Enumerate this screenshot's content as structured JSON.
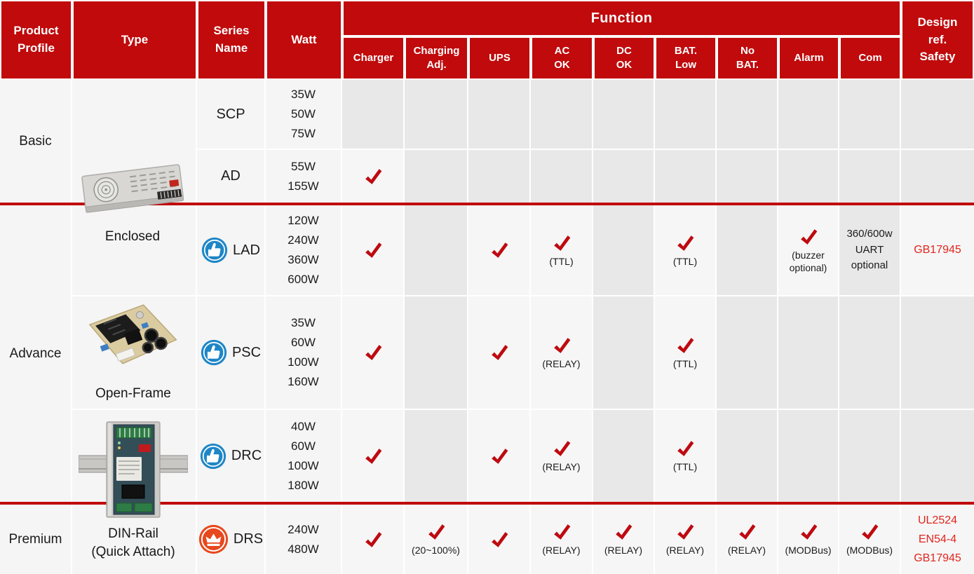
{
  "colors": {
    "header_red": "#C00A0C",
    "divider_red": "#C00A0C",
    "check_red": "#BE0A10",
    "safety_text_red": "#E2251E",
    "badge_blue": "#1E86C6",
    "badge_orange": "#E8481E",
    "cell_light": "#F6F6F6",
    "cell_shaded": "#E8E8E8",
    "panel_light": "#F5F5F5"
  },
  "header": {
    "product_profile_lines": [
      "Product",
      "Profile"
    ],
    "type_label": "Type",
    "series_name_lines": [
      "Series",
      "Name"
    ],
    "watt_label": "Watt",
    "function_label": "Function",
    "function_subcols": [
      [
        "Charger"
      ],
      [
        "Charging",
        "Adj."
      ],
      [
        "UPS"
      ],
      [
        "AC",
        "OK"
      ],
      [
        "DC",
        "OK"
      ],
      [
        "BAT.",
        "Low"
      ],
      [
        "No",
        "BAT."
      ],
      [
        "Alarm"
      ],
      [
        "Com"
      ]
    ],
    "safety_lines": [
      "Design",
      "ref.",
      "Safety"
    ]
  },
  "profiles": [
    {
      "label": "Basic"
    },
    {
      "label": "Advance"
    },
    {
      "label": "Premium"
    }
  ],
  "types": [
    {
      "caption_lines": [
        "Enclosed"
      ],
      "image": "enclosed-power-supply"
    },
    {
      "caption_lines": [
        "Open-Frame"
      ],
      "image": "open-frame-power-supply"
    },
    {
      "caption_lines": [
        "DIN-Rail",
        "(Quick Attach)"
      ],
      "image": "din-rail-power-supply"
    }
  ],
  "rows": [
    {
      "series": "SCP",
      "badge": null,
      "watts": [
        "35W",
        "50W",
        "75W"
      ],
      "cells": [
        null,
        null,
        null,
        null,
        null,
        null,
        null,
        null,
        null
      ],
      "safety": []
    },
    {
      "series": "AD",
      "badge": null,
      "watts": [
        "55W",
        "155W"
      ],
      "cells": [
        {
          "check": true
        },
        null,
        null,
        null,
        null,
        null,
        null,
        null,
        null
      ],
      "safety": []
    },
    {
      "series": "LAD",
      "badge": "thumbs-up",
      "watts": [
        "120W",
        "240W",
        "360W",
        "600W"
      ],
      "cells": [
        {
          "check": true
        },
        null,
        {
          "check": true
        },
        {
          "check": true,
          "note": "(TTL)"
        },
        null,
        {
          "check": true,
          "note": "(TTL)"
        },
        null,
        {
          "check": true,
          "note": "(buzzer optional)"
        },
        {
          "text": "360/600w UART optional",
          "shaded": true
        }
      ],
      "safety": [
        "GB17945"
      ]
    },
    {
      "series": "PSC",
      "badge": "thumbs-up",
      "watts": [
        "35W",
        "60W",
        "100W",
        "160W"
      ],
      "cells": [
        {
          "check": true
        },
        null,
        {
          "check": true
        },
        {
          "check": true,
          "note": "(RELAY)"
        },
        null,
        {
          "check": true,
          "note": "(TTL)"
        },
        null,
        null,
        null
      ],
      "safety": []
    },
    {
      "series": "DRC",
      "badge": "thumbs-up",
      "watts": [
        "40W",
        "60W",
        "100W",
        "180W"
      ],
      "cells": [
        {
          "check": true
        },
        null,
        {
          "check": true
        },
        {
          "check": true,
          "note": "(RELAY)"
        },
        null,
        {
          "check": true,
          "note": "(TTL)"
        },
        null,
        null,
        null
      ],
      "safety": []
    },
    {
      "series": "DRS",
      "badge": "crown",
      "watts": [
        "240W",
        "480W"
      ],
      "cells": [
        {
          "check": true
        },
        {
          "check": true,
          "note": "(20~100%)"
        },
        {
          "check": true
        },
        {
          "check": true,
          "note": "(RELAY)"
        },
        {
          "check": true,
          "note": "(RELAY)"
        },
        {
          "check": true,
          "note": "(RELAY)"
        },
        {
          "check": true,
          "note": "(RELAY)"
        },
        {
          "check": true,
          "note": "(MODBus)"
        },
        {
          "check": true,
          "note": "(MODBus)"
        }
      ],
      "safety": [
        "UL2524",
        "EN54-4",
        "GB17945"
      ]
    }
  ]
}
